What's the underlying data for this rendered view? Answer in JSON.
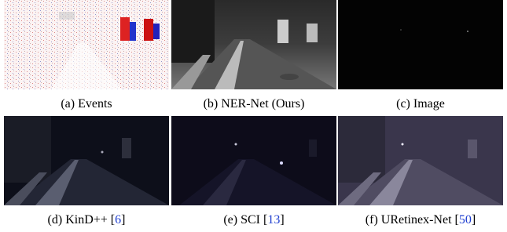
{
  "panels": [
    {
      "caption": [
        "(a) Events"
      ]
    },
    {
      "caption": [
        "(b) NER-Net (Ours)"
      ]
    },
    {
      "caption": [
        "(c) Image"
      ]
    },
    {
      "caption": [
        "(d) KinD++ [",
        "6",
        "]"
      ]
    },
    {
      "caption": [
        "(e) SCI [",
        "13",
        "]"
      ]
    },
    {
      "caption": [
        "(f) URetinex-Net [",
        "50",
        "]"
      ]
    }
  ]
}
